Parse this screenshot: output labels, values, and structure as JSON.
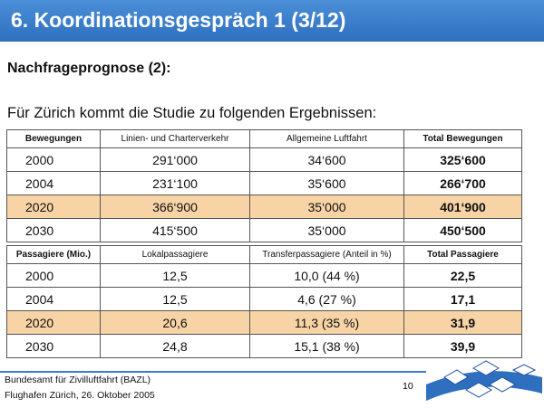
{
  "header": {
    "title": "6. Koordinationsgespräch 1 (3/12)"
  },
  "subtitle": "Nachfrageprognose (2):",
  "intro": "Für Zürich kommt die Studie zu folgenden Ergebnissen:",
  "tables": [
    {
      "header": [
        "Bewegungen",
        "Linien- und Charterverkehr",
        "Allgemeine Luftfahrt",
        "Total Bewegungen"
      ],
      "rows": [
        [
          "2000",
          "291‘000",
          "34‘600",
          "325‘600"
        ],
        [
          "2004",
          "231‘100",
          "35‘600",
          "266‘700"
        ],
        [
          "2020",
          "366‘900",
          "35‘000",
          "401‘900"
        ],
        [
          "2030",
          "415‘500",
          "35‘000",
          "450‘500"
        ]
      ]
    },
    {
      "header": [
        "Passagiere (Mio.)",
        "Lokalpassagiere",
        "Transferpassagiere (Anteil in %)",
        "Total Passagiere"
      ],
      "rows": [
        [
          "2000",
          "12,5",
          "10,0 (44 %)",
          "22,5"
        ],
        [
          "2004",
          "12,5",
          "4,6 (27 %)",
          "17,1"
        ],
        [
          "2020",
          "20,6",
          "11,3 (35 %)",
          "31,9"
        ],
        [
          "2030",
          "24,8",
          "15,1 (38 %)",
          "39,9"
        ]
      ]
    }
  ],
  "footer": {
    "line1": "Bundesamt für Zivilluftfahrt (BAZL)",
    "line2": "Flughafen Zürich, 26. Oktober 2005",
    "page": "10"
  }
}
